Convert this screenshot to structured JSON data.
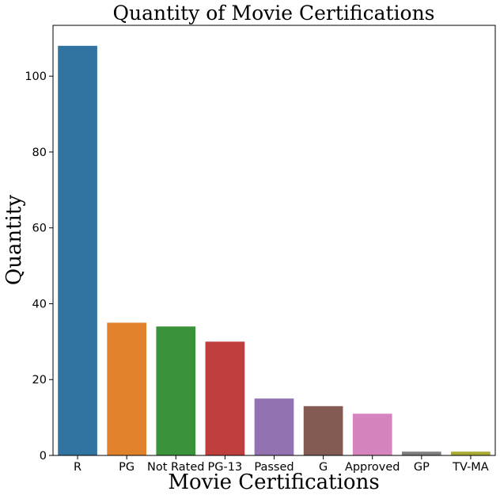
{
  "chart_data": {
    "type": "bar",
    "title": "Quantity of Movie Certifications",
    "xlabel": "Movie Certifications",
    "ylabel": "Quantity",
    "categories": [
      "R",
      "PG",
      "Not Rated",
      "PG-13",
      "Passed",
      "G",
      "Approved",
      "GP",
      "TV-MA"
    ],
    "values": [
      108,
      35,
      34,
      30,
      15,
      13,
      11,
      1,
      1
    ],
    "colors": [
      "#3274a1",
      "#e1812c",
      "#3a923a",
      "#c03d3e",
      "#9372b2",
      "#845b53",
      "#d684bd",
      "#7f7f7f",
      "#a9aa35"
    ],
    "ylim": [
      0,
      113.4
    ],
    "yticks": [
      0,
      20,
      40,
      60,
      80,
      100
    ],
    "grid": false,
    "legend": "none"
  }
}
